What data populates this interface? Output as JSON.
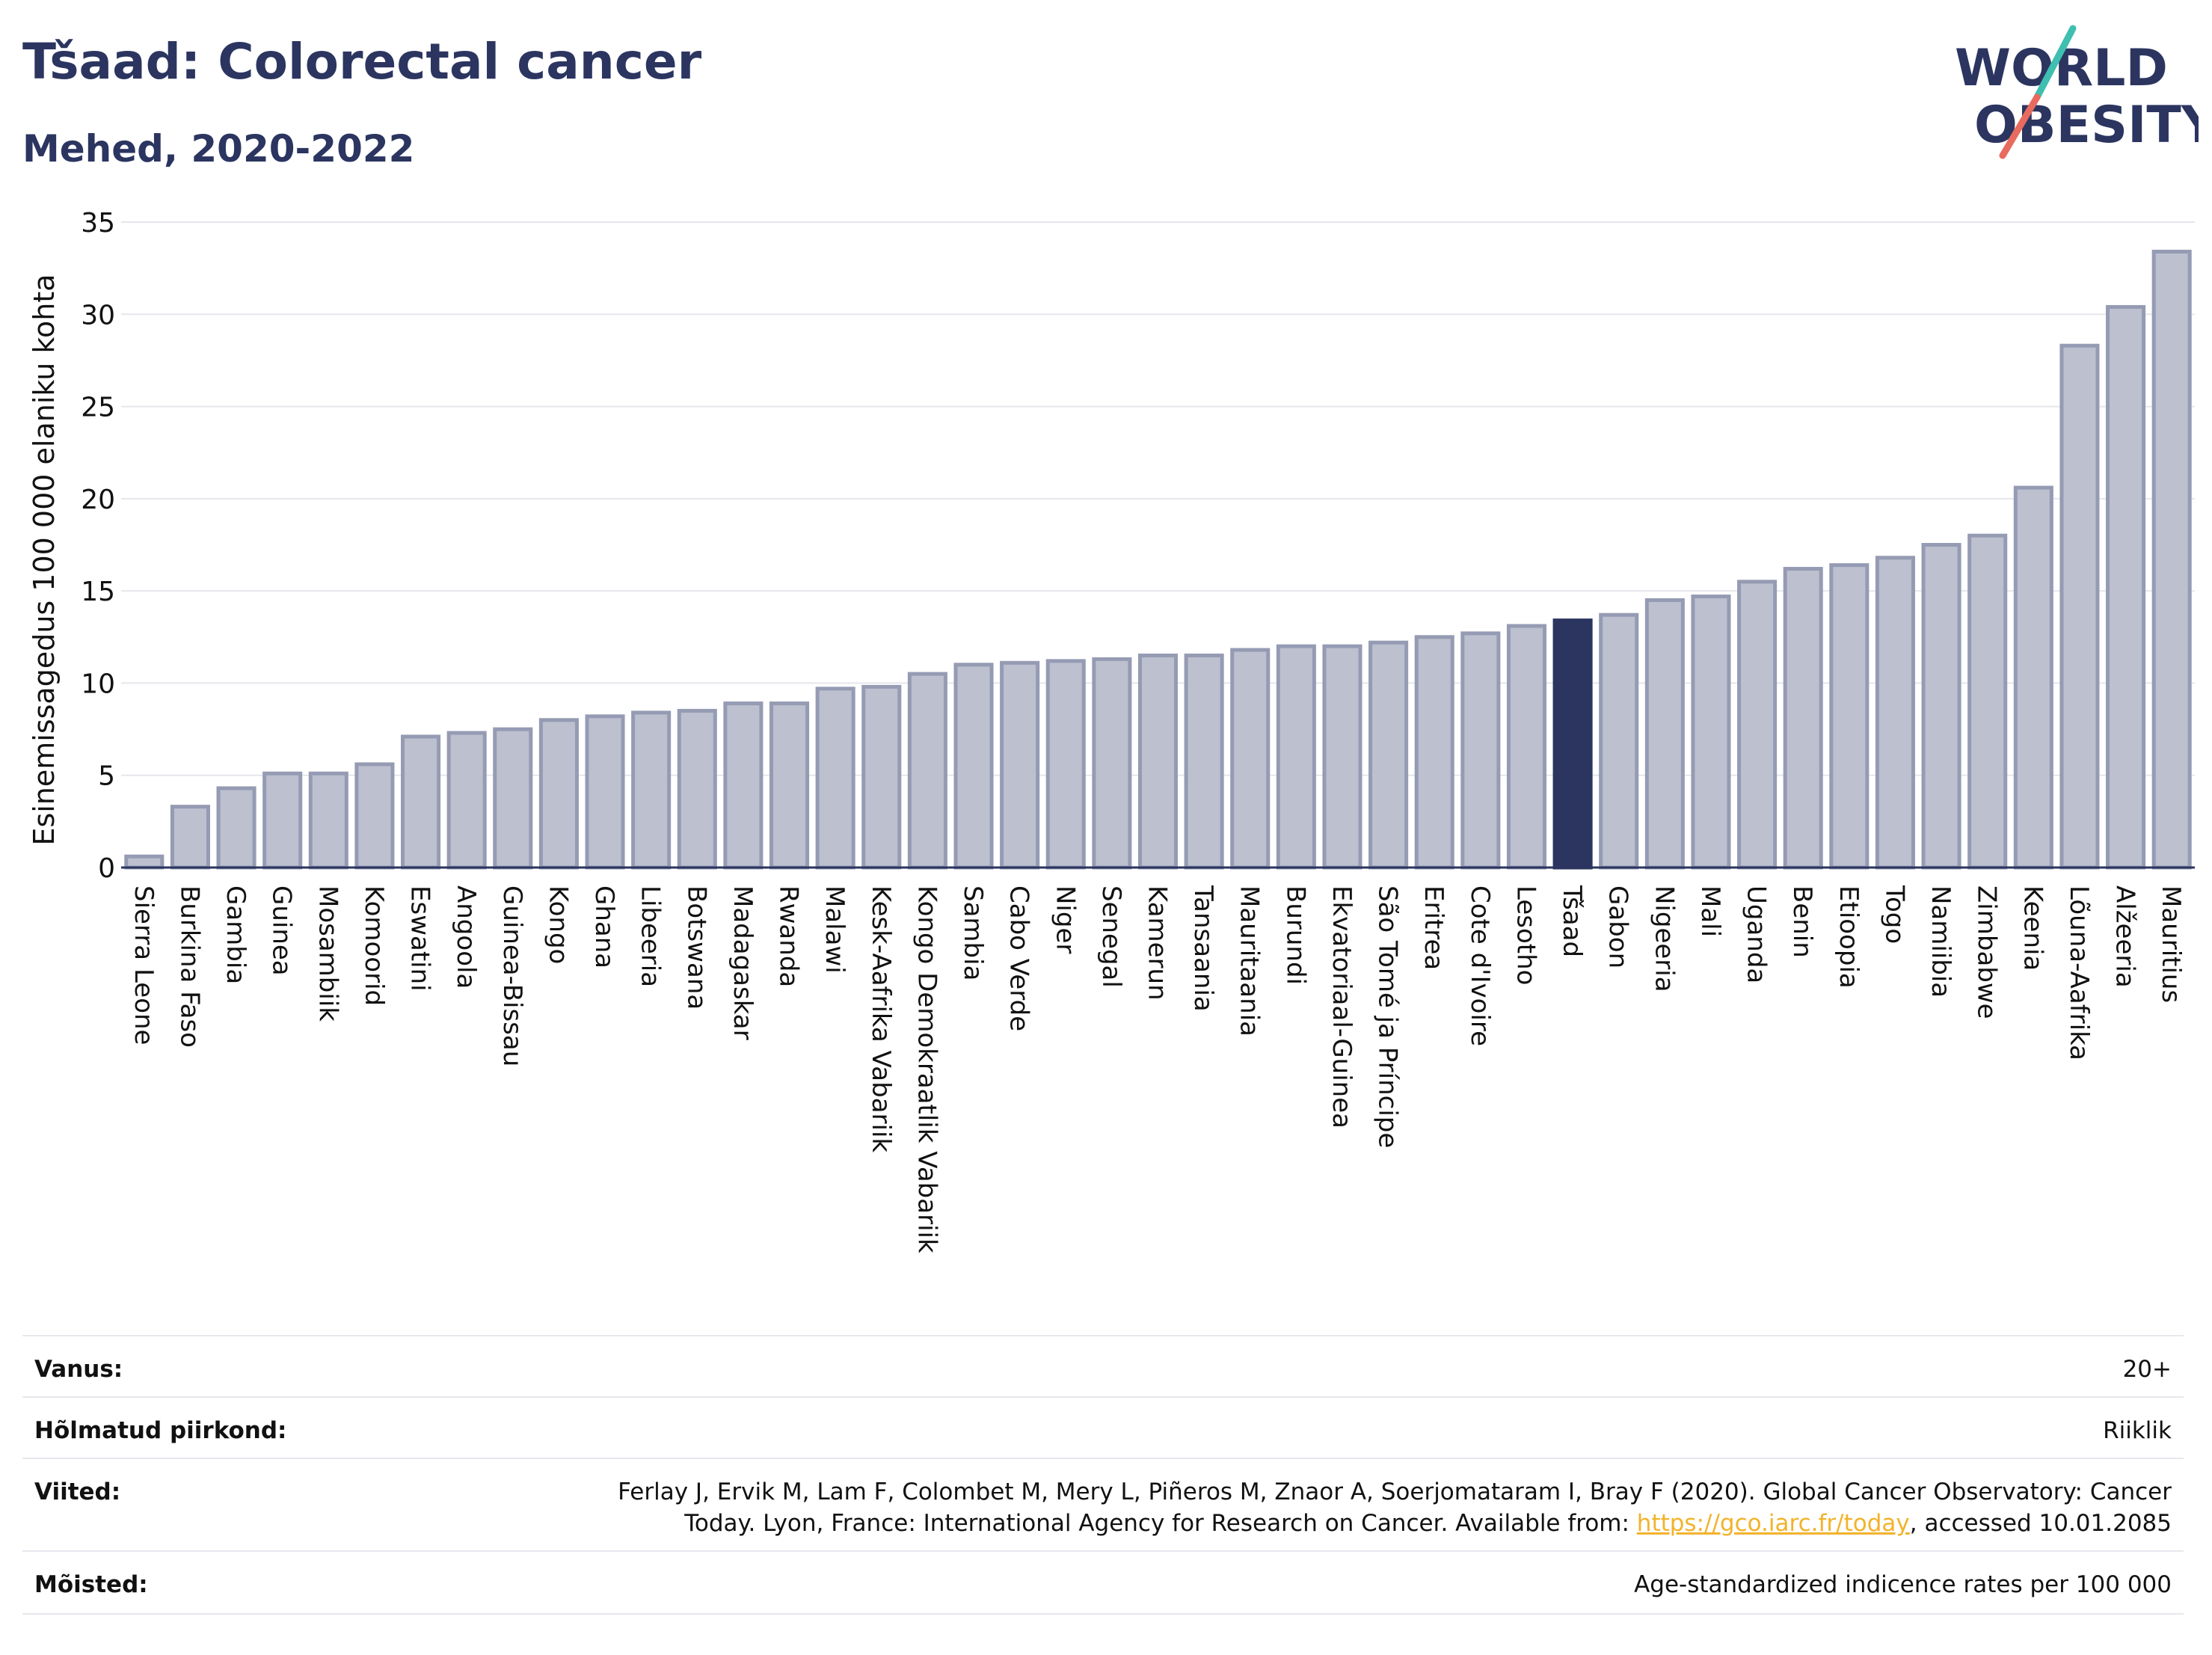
{
  "header": {
    "title": "Tšaad: Colorectal cancer",
    "subtitle": "Mehed, 2020-2022"
  },
  "logo": {
    "line1": "WORLD",
    "line2": "OBESITY"
  },
  "colors": {
    "text": "#2b3560",
    "bar": "#bcc0cf",
    "bar_border": "#959bb3",
    "highlight": "#2b3560",
    "grid": "#e6e7ec",
    "logo_teal": "#3fbfb0",
    "logo_coral": "#e86b5f",
    "link": "#f2b32b"
  },
  "chart_data": {
    "type": "bar",
    "ylabel": "Esinemissagedus 100 000 elaniku kohta",
    "ylim": [
      0,
      35
    ],
    "yticks": [
      0,
      5,
      10,
      15,
      20,
      25,
      30,
      35
    ],
    "grid": true,
    "highlight": "Tšaad",
    "categories": [
      "Sierra Leone",
      "Burkina Faso",
      "Gambia",
      "Guinea",
      "Mosambiik",
      "Komoorid",
      "Eswatini",
      "Angoola",
      "Guinea-Bissau",
      "Kongo",
      "Ghana",
      "Libeeria",
      "Botswana",
      "Madagaskar",
      "Rwanda",
      "Malawi",
      "Kesk-Aafrika Vabariik",
      "Kongo Demokraatlik Vabariik",
      "Sambia",
      "Cabo Verde",
      "Niger",
      "Senegal",
      "Kamerun",
      "Tansaania",
      "Mauritaania",
      "Burundi",
      "Ekvatoriaal-Guinea",
      "São Tomé ja Príncipe",
      "Eritrea",
      "Cote d'Ivoire",
      "Lesotho",
      "Tšaad",
      "Gabon",
      "Nigeeria",
      "Mali",
      "Uganda",
      "Benin",
      "Etioopia",
      "Togo",
      "Namiibia",
      "Zimbabwe",
      "Keenia",
      "Lõuna-Aafrika",
      "Alžeeria",
      "Mauritius"
    ],
    "values": [
      0.6,
      3.3,
      4.3,
      5.1,
      5.1,
      5.6,
      7.1,
      7.3,
      7.5,
      8.0,
      8.2,
      8.4,
      8.5,
      8.9,
      8.9,
      9.7,
      9.8,
      10.5,
      11.0,
      11.1,
      11.2,
      11.3,
      11.5,
      11.5,
      11.8,
      12.0,
      12.0,
      12.2,
      12.5,
      12.7,
      13.1,
      13.4,
      13.7,
      14.5,
      14.7,
      15.5,
      16.2,
      16.4,
      16.8,
      17.5,
      18.0,
      20.6,
      28.3,
      30.4,
      33.4
    ]
  },
  "meta": {
    "age_label": "Vanus:",
    "age_value": "20+",
    "region_label": "Hõlmatud piirkond:",
    "region_value": "Riiklik",
    "refs_label": "Viited:",
    "refs_line1": "Ferlay J, Ervik M, Lam F, Colombet M, Mery L, Piñeros M, Znaor A, Soerjomataram I, Bray F (2020). Global Cancer Observatory: Cancer",
    "refs_line2_pre": "Today. Lyon, France: International Agency for Research on Cancer. Available from: ",
    "refs_link": "https://gco.iarc.fr/today",
    "refs_line2_post": ", accessed 10.01.2085",
    "defs_label": "Mõisted:",
    "defs_value": "Age-standardized indicence rates per 100 000"
  }
}
